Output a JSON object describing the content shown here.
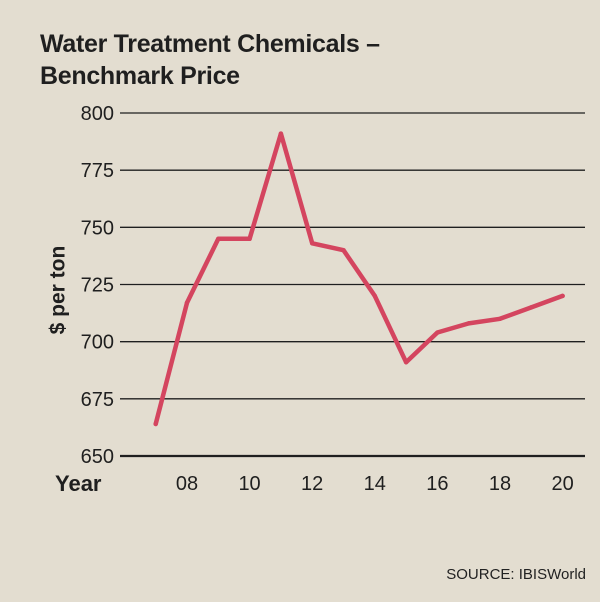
{
  "chart_data": {
    "type": "line",
    "title_line1": "Water Treatment Chemicals –",
    "title_line2": "Benchmark Price",
    "ylabel": "$ per ton",
    "xlabel": "Year",
    "ylim": [
      650,
      800
    ],
    "yticks": [
      650,
      675,
      700,
      725,
      750,
      775,
      800
    ],
    "xlim": [
      2006.5,
      2020.3
    ],
    "xticks": [
      {
        "value": 2008,
        "label": "08"
      },
      {
        "value": 2010,
        "label": "10"
      },
      {
        "value": 2012,
        "label": "12"
      },
      {
        "value": 2014,
        "label": "14"
      },
      {
        "value": 2016,
        "label": "16"
      },
      {
        "value": 2018,
        "label": "18"
      },
      {
        "value": 2020,
        "label": "20"
      }
    ],
    "series": [
      {
        "name": "Benchmark Price",
        "x": [
          2007,
          2008,
          2009,
          2010,
          2011,
          2012,
          2013,
          2014,
          2015,
          2016,
          2017,
          2018,
          2019,
          2020
        ],
        "values": [
          664,
          717,
          745,
          745,
          791,
          743,
          740,
          720,
          691,
          704,
          708,
          710,
          715,
          720
        ]
      }
    ],
    "grid": true,
    "line_color": "#d4455f",
    "source": "SOURCE: IBISWorld"
  }
}
